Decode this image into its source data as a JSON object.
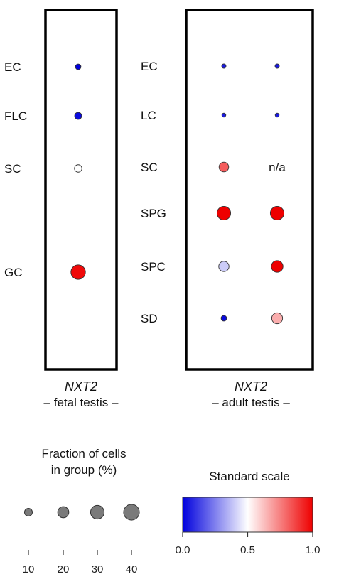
{
  "colors": {
    "low": "#0000dd",
    "mid": "#ffffff",
    "high": "#ee0000",
    "frame": "#000000",
    "legend_dot": "#7a7a7a"
  },
  "chart_data": [
    {
      "type": "scatter",
      "title": "NXT2",
      "subtitle": "– fetal testis –",
      "rows": [
        "EC",
        "FLC",
        "SC",
        "GC"
      ],
      "points": [
        {
          "row": "EC",
          "col": 0,
          "fraction_pct": 5,
          "scale": 0.0
        },
        {
          "row": "FLC",
          "col": 0,
          "fraction_pct": 8,
          "scale": 0.02
        },
        {
          "row": "SC",
          "col": 0,
          "fraction_pct": 9,
          "scale": 0.5
        },
        {
          "row": "GC",
          "col": 0,
          "fraction_pct": 34,
          "scale": 0.98
        }
      ]
    },
    {
      "type": "scatter",
      "title": "NXT2",
      "subtitle": "– adult testis –",
      "rows": [
        "EC",
        "LC",
        "SC",
        "SPG",
        "SPC",
        "SD"
      ],
      "points": [
        {
          "row": "EC",
          "col": 0,
          "fraction_pct": 3,
          "scale": 0.05
        },
        {
          "row": "EC",
          "col": 1,
          "fraction_pct": 3,
          "scale": 0.05
        },
        {
          "row": "LC",
          "col": 0,
          "fraction_pct": 2.5,
          "scale": 0.05
        },
        {
          "row": "LC",
          "col": 1,
          "fraction_pct": 2.5,
          "scale": 0.05
        },
        {
          "row": "SC",
          "col": 0,
          "fraction_pct": 15,
          "scale": 0.82
        },
        {
          "row": "SPG",
          "col": 0,
          "fraction_pct": 30,
          "scale": 1.0
        },
        {
          "row": "SPG",
          "col": 1,
          "fraction_pct": 30,
          "scale": 1.0
        },
        {
          "row": "SPC",
          "col": 0,
          "fraction_pct": 17,
          "scale": 0.4
        },
        {
          "row": "SPC",
          "col": 1,
          "fraction_pct": 22,
          "scale": 1.0
        },
        {
          "row": "SD",
          "col": 0,
          "fraction_pct": 5,
          "scale": 0.02
        },
        {
          "row": "SD",
          "col": 1,
          "fraction_pct": 19,
          "scale": 0.66
        }
      ],
      "annotations": [
        {
          "row": "SC",
          "col": 1,
          "text": "n/a"
        }
      ]
    }
  ],
  "size_legend": {
    "title_line1": "Fraction of cells",
    "title_line2": "in group (%)",
    "values": [
      10,
      20,
      30,
      40
    ],
    "labels": [
      "10",
      "20",
      "30",
      "40"
    ]
  },
  "color_legend": {
    "title": "Standard scale",
    "ticks": [
      0.0,
      0.5,
      1.0
    ],
    "tick_labels": [
      "0.0",
      "0.5",
      "1.0"
    ]
  }
}
